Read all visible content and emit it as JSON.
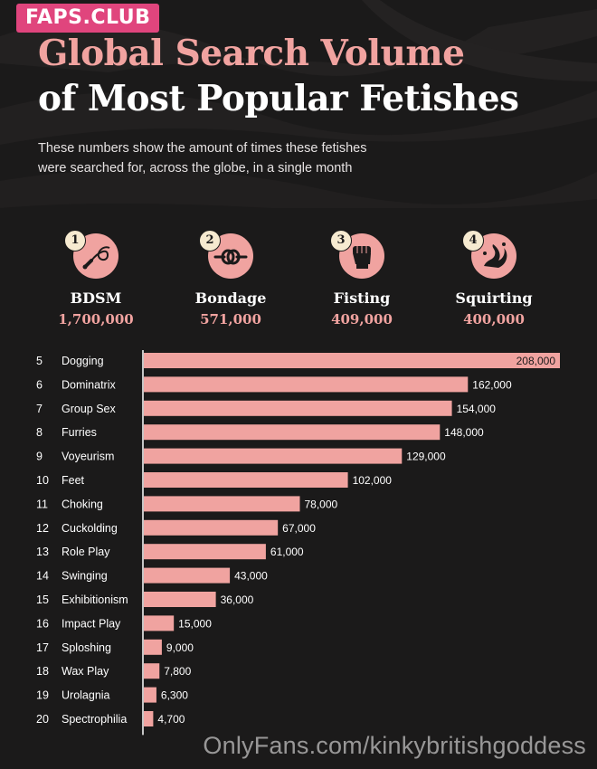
{
  "brand": {
    "badge": "FAPS.CLUB"
  },
  "header": {
    "title_line1": "Global Search Volume",
    "title_line2": "of Most Popular Fetishes",
    "subtitle_line1": "These numbers show the amount of times these fetishes",
    "subtitle_line2": "were searched for, across the globe, in a single month"
  },
  "top4": [
    {
      "rank": "1",
      "name": "BDSM",
      "value": "1,700,000",
      "icon": "whip-icon"
    },
    {
      "rank": "2",
      "name": "Bondage",
      "value": "571,000",
      "icon": "rope-knot-icon"
    },
    {
      "rank": "3",
      "name": "Fisting",
      "value": "409,000",
      "icon": "fist-icon"
    },
    {
      "rank": "4",
      "name": "Squirting",
      "value": "400,000",
      "icon": "splash-icon"
    }
  ],
  "chart_data": {
    "type": "bar",
    "orientation": "horizontal",
    "title": "Global Search Volume of Most Popular Fetishes",
    "ranks": [
      "5",
      "6",
      "7",
      "8",
      "9",
      "10",
      "11",
      "12",
      "13",
      "14",
      "15",
      "16",
      "17",
      "18",
      "19",
      "20"
    ],
    "categories": [
      "Dogging",
      "Dominatrix",
      "Group Sex",
      "Furries",
      "Voyeurism",
      "Feet",
      "Choking",
      "Cuckolding",
      "Role Play",
      "Swinging",
      "Exhibitionism",
      "Impact Play",
      "Sploshing",
      "Wax Play",
      "Urolagnia",
      "Spectrophilia"
    ],
    "values": [
      208000,
      162000,
      154000,
      148000,
      129000,
      102000,
      78000,
      67000,
      61000,
      43000,
      36000,
      15000,
      9000,
      7800,
      6300,
      4700
    ],
    "value_labels": [
      "208,000",
      "162,000",
      "154,000",
      "148,000",
      "129,000",
      "102,000",
      "78,000",
      "67,000",
      "61,000",
      "43,000",
      "36,000",
      "15,000",
      "9,000",
      "7,800",
      "6,300",
      "4,700"
    ],
    "xlim": [
      0,
      208000
    ],
    "grid": false,
    "legend": "none",
    "bar_color": "#f0a3a0",
    "axis_color": "#ffffff"
  },
  "watermark": {
    "text": "OnlyFans.com/kinkybritishgoddess"
  },
  "colors": {
    "background": "#1b1a1a",
    "accent_pink": "#f0a3a0",
    "badge_magenta": "#e0457d",
    "rank_badge": "#f6ead0"
  }
}
